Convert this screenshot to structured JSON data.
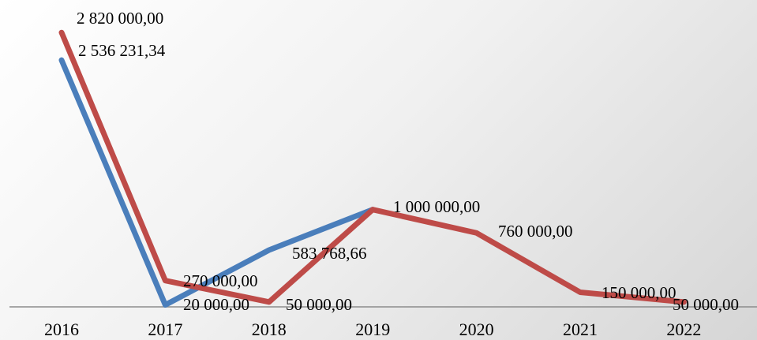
{
  "chart_data": {
    "type": "line",
    "title": "",
    "xlabel": "",
    "ylabel": "",
    "categories": [
      "2016",
      "2017",
      "2018",
      "2019",
      "2020",
      "2021",
      "2022"
    ],
    "ylim": [
      0,
      3000000
    ],
    "grid": false,
    "legend": "none",
    "series": [
      {
        "color": "#4a7ebb",
        "values": [
          2536231.34,
          20000,
          583768.66,
          1000000,
          null,
          null,
          null
        ],
        "labels": [
          "2 536 231,34",
          "20 000,00",
          "583 768,66",
          "",
          "",
          "",
          ""
        ]
      },
      {
        "color": "#be4b48",
        "values": [
          2820000,
          270000,
          50000,
          1000000,
          760000,
          150000,
          50000
        ],
        "labels": [
          "2 820 000,00",
          "270 000,00",
          "50 000,00",
          "1 000 000,00",
          "760 000,00",
          "150 000,00",
          "50 000,00"
        ]
      }
    ],
    "axis_color": "#8c8c8c"
  }
}
